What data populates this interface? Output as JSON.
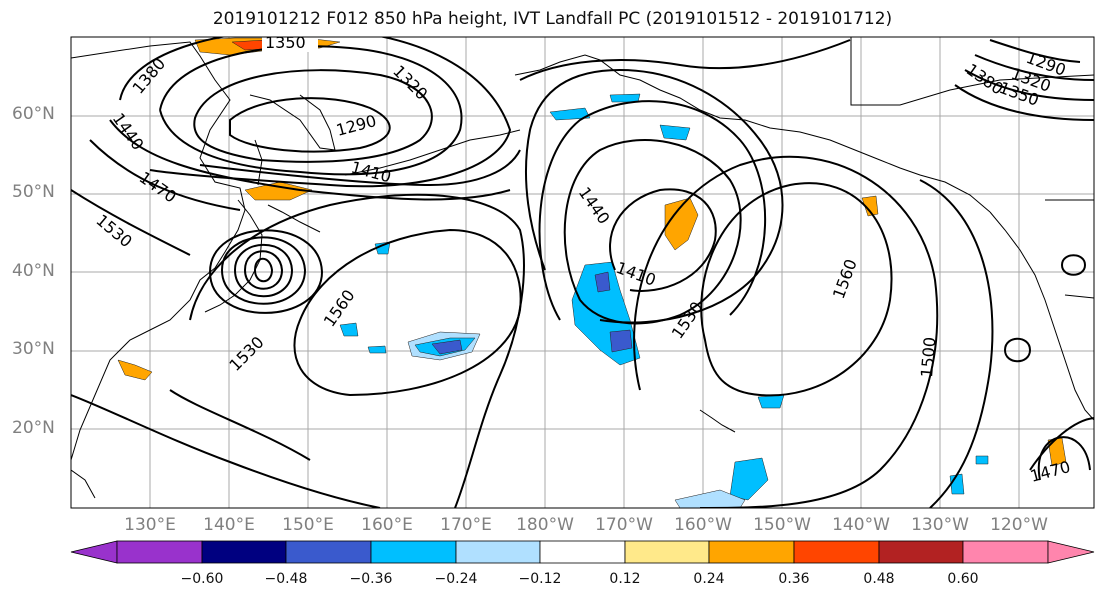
{
  "title": "2019101212 F012 850 hPa height, IVT Landfall PC (2019101512 - 2019101712)",
  "map": {
    "type": "contour",
    "variable_lines": "850 hPa height",
    "variable_fill": "IVT Landfall PC",
    "lat_ticks": [
      "60°N",
      "50°N",
      "40°N",
      "30°N",
      "20°N"
    ],
    "lon_ticks": [
      "130°E",
      "140°E",
      "150°E",
      "160°E",
      "170°E",
      "180°W",
      "170°W",
      "160°W",
      "150°W",
      "140°W",
      "130°W",
      "120°W"
    ],
    "contour_labels": [
      "1350",
      "1380",
      "1320",
      "1290",
      "1440",
      "1410",
      "1470",
      "1530",
      "1560",
      "1440",
      "1410",
      "1530",
      "1560",
      "1500",
      "1290",
      "1320",
      "1350",
      "1380",
      "1530",
      "1470"
    ],
    "grid": true
  },
  "colorbar": {
    "ticks": [
      "−0.60",
      "−0.48",
      "−0.36",
      "−0.24",
      "−0.12",
      "0.12",
      "0.24",
      "0.36",
      "0.48",
      "0.60"
    ],
    "colors": [
      "#9932cc",
      "#000080",
      "#3a5acd",
      "#00bfff",
      "#b0e0ff",
      "#ffffff",
      "#ffe98a",
      "#ffa500",
      "#ff4500",
      "#b22222",
      "#ff85ad"
    ],
    "extend": "both"
  }
}
